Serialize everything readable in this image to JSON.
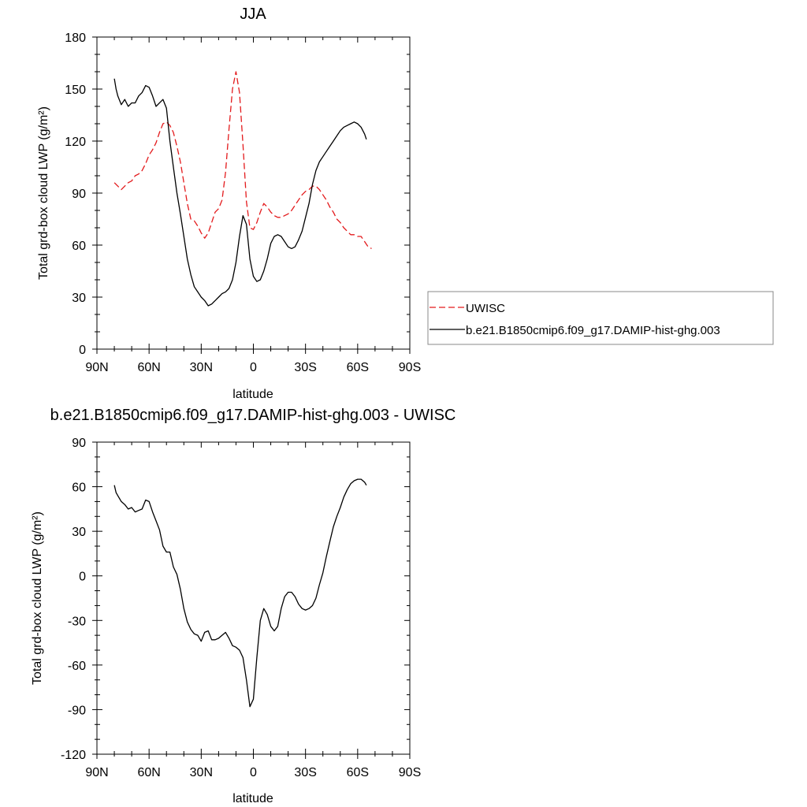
{
  "chart_data": [
    {
      "type": "line",
      "title": "JJA",
      "xlabel": "latitude",
      "ylabel": "Total grd-box cloud LWP (g/m²)",
      "xlim": [
        90,
        -90
      ],
      "ylim": [
        0,
        180
      ],
      "x_ticks": [
        90,
        60,
        30,
        0,
        -30,
        -60,
        -90
      ],
      "x_tick_labels": [
        "90N",
        "60N",
        "30N",
        "0",
        "30S",
        "60S",
        "90S"
      ],
      "y_ticks": [
        0,
        30,
        60,
        90,
        120,
        150,
        180
      ],
      "y_tick_labels": [
        "0",
        "30",
        "60",
        "90",
        "120",
        "150",
        "180"
      ],
      "legend": {
        "placement": "right"
      },
      "series": [
        {
          "name": "UWISC",
          "color": "#e31a1c",
          "dash": "dashed",
          "x": [
            80,
            78,
            76,
            74,
            72,
            70,
            68,
            66,
            64,
            62,
            60,
            58,
            56,
            54,
            52,
            50,
            48,
            46,
            44,
            42,
            40,
            38,
            36,
            34,
            32,
            30,
            28,
            26,
            24,
            22,
            20,
            18,
            16,
            14,
            12,
            10,
            8,
            6,
            4,
            2,
            0,
            -2,
            -4,
            -6,
            -8,
            -10,
            -12,
            -14,
            -16,
            -18,
            -20,
            -22,
            -24,
            -26,
            -28,
            -30,
            -32,
            -34,
            -36,
            -38,
            -40,
            -42,
            -44,
            -46,
            -48,
            -50,
            -52,
            -54,
            -56,
            -58,
            -60,
            -62,
            -64,
            -66,
            -68
          ],
          "values": [
            96,
            94,
            92,
            94,
            96,
            97,
            100,
            101,
            103,
            107,
            112,
            115,
            119,
            125,
            130,
            131,
            129,
            125,
            117,
            108,
            96,
            84,
            75,
            74,
            71,
            67,
            64,
            67,
            73,
            79,
            81,
            86,
            102,
            127,
            150,
            160,
            148,
            118,
            85,
            70,
            69,
            73,
            79,
            84,
            82,
            79,
            77,
            76,
            76,
            77,
            78,
            80,
            83,
            86,
            89,
            91,
            92,
            94,
            94,
            92,
            89,
            86,
            82,
            79,
            75,
            73,
            70,
            68,
            66,
            66,
            65,
            65,
            62,
            59,
            58
          ]
        },
        {
          "name": "b.e21.B1850cmip6.f09_g17.DAMIP-hist-ghg.003",
          "color": "#000000",
          "dash": "solid",
          "x": [
            80,
            79,
            78,
            76,
            74,
            72,
            70,
            68,
            66,
            64,
            62,
            60,
            58,
            56,
            54,
            52,
            50,
            48,
            46,
            44,
            42,
            40,
            38,
            36,
            34,
            32,
            30,
            28,
            26,
            24,
            22,
            20,
            18,
            16,
            14,
            12,
            10,
            8,
            6,
            4,
            2,
            0,
            -2,
            -4,
            -6,
            -8,
            -10,
            -12,
            -14,
            -16,
            -18,
            -20,
            -22,
            -24,
            -26,
            -28,
            -30,
            -32,
            -34,
            -36,
            -38,
            -40,
            -42,
            -44,
            -46,
            -48,
            -50,
            -52,
            -54,
            -56,
            -58,
            -60,
            -62,
            -64,
            -65
          ],
          "values": [
            156,
            150,
            146,
            141,
            144,
            140,
            142,
            142,
            146,
            148,
            152,
            151,
            146,
            140,
            142,
            144,
            139,
            120,
            105,
            90,
            78,
            65,
            52,
            43,
            36,
            33,
            30,
            28,
            25,
            26,
            28,
            30,
            32,
            33,
            35,
            40,
            50,
            65,
            77,
            72,
            52,
            42,
            39,
            40,
            45,
            52,
            61,
            65,
            66,
            65,
            62,
            59,
            58,
            59,
            63,
            68,
            76,
            84,
            95,
            103,
            108,
            111,
            114,
            117,
            120,
            123,
            126,
            128,
            129,
            130,
            131,
            130,
            128,
            124,
            121
          ]
        }
      ]
    },
    {
      "type": "line",
      "title": "b.e21.B1850cmip6.f09_g17.DAMIP-hist-ghg.003 - UWISC",
      "xlabel": "latitude",
      "ylabel": "Total grd-box cloud LWP (g/m²)",
      "xlim": [
        90,
        -90
      ],
      "ylim": [
        -120,
        90
      ],
      "x_ticks": [
        90,
        60,
        30,
        0,
        -30,
        -60,
        -90
      ],
      "x_tick_labels": [
        "90N",
        "60N",
        "30N",
        "0",
        "30S",
        "60S",
        "90S"
      ],
      "y_ticks": [
        -120,
        -90,
        -60,
        -30,
        0,
        30,
        60,
        90
      ],
      "y_tick_labels": [
        "-120",
        "-90",
        "-60",
        "-30",
        "0",
        "30",
        "60",
        "90"
      ],
      "series": [
        {
          "color": "#000000",
          "dash": "solid",
          "x": [
            80,
            79,
            78,
            76,
            74,
            72,
            70,
            68,
            66,
            64,
            62,
            60,
            58,
            56,
            54,
            52,
            50,
            48,
            46,
            44,
            42,
            40,
            38,
            36,
            34,
            32,
            30,
            28,
            26,
            24,
            22,
            20,
            18,
            16,
            14,
            12,
            10,
            8,
            6,
            4,
            2,
            0,
            -2,
            -4,
            -6,
            -8,
            -10,
            -12,
            -14,
            -16,
            -18,
            -20,
            -22,
            -24,
            -26,
            -28,
            -30,
            -32,
            -34,
            -36,
            -38,
            -40,
            -42,
            -44,
            -46,
            -48,
            -50,
            -52,
            -54,
            -56,
            -58,
            -60,
            -62,
            -64,
            -65
          ],
          "values": [
            61,
            56,
            54,
            50,
            48,
            45,
            46,
            43,
            44,
            45,
            51,
            50,
            43,
            37,
            31,
            20,
            16,
            16,
            6,
            1,
            -9,
            -22,
            -31,
            -36,
            -39,
            -40,
            -44,
            -38,
            -37,
            -43,
            -43,
            -42,
            -40,
            -38,
            -42,
            -47,
            -48,
            -50,
            -55,
            -70,
            -88,
            -83,
            -55,
            -30,
            -22,
            -26,
            -34,
            -37,
            -34,
            -22,
            -14,
            -11,
            -11,
            -14,
            -19,
            -22,
            -23,
            -22,
            -20,
            -15,
            -6,
            2,
            13,
            23,
            33,
            40,
            46,
            53,
            58,
            62,
            64,
            65,
            65,
            63,
            61
          ]
        }
      ]
    }
  ]
}
